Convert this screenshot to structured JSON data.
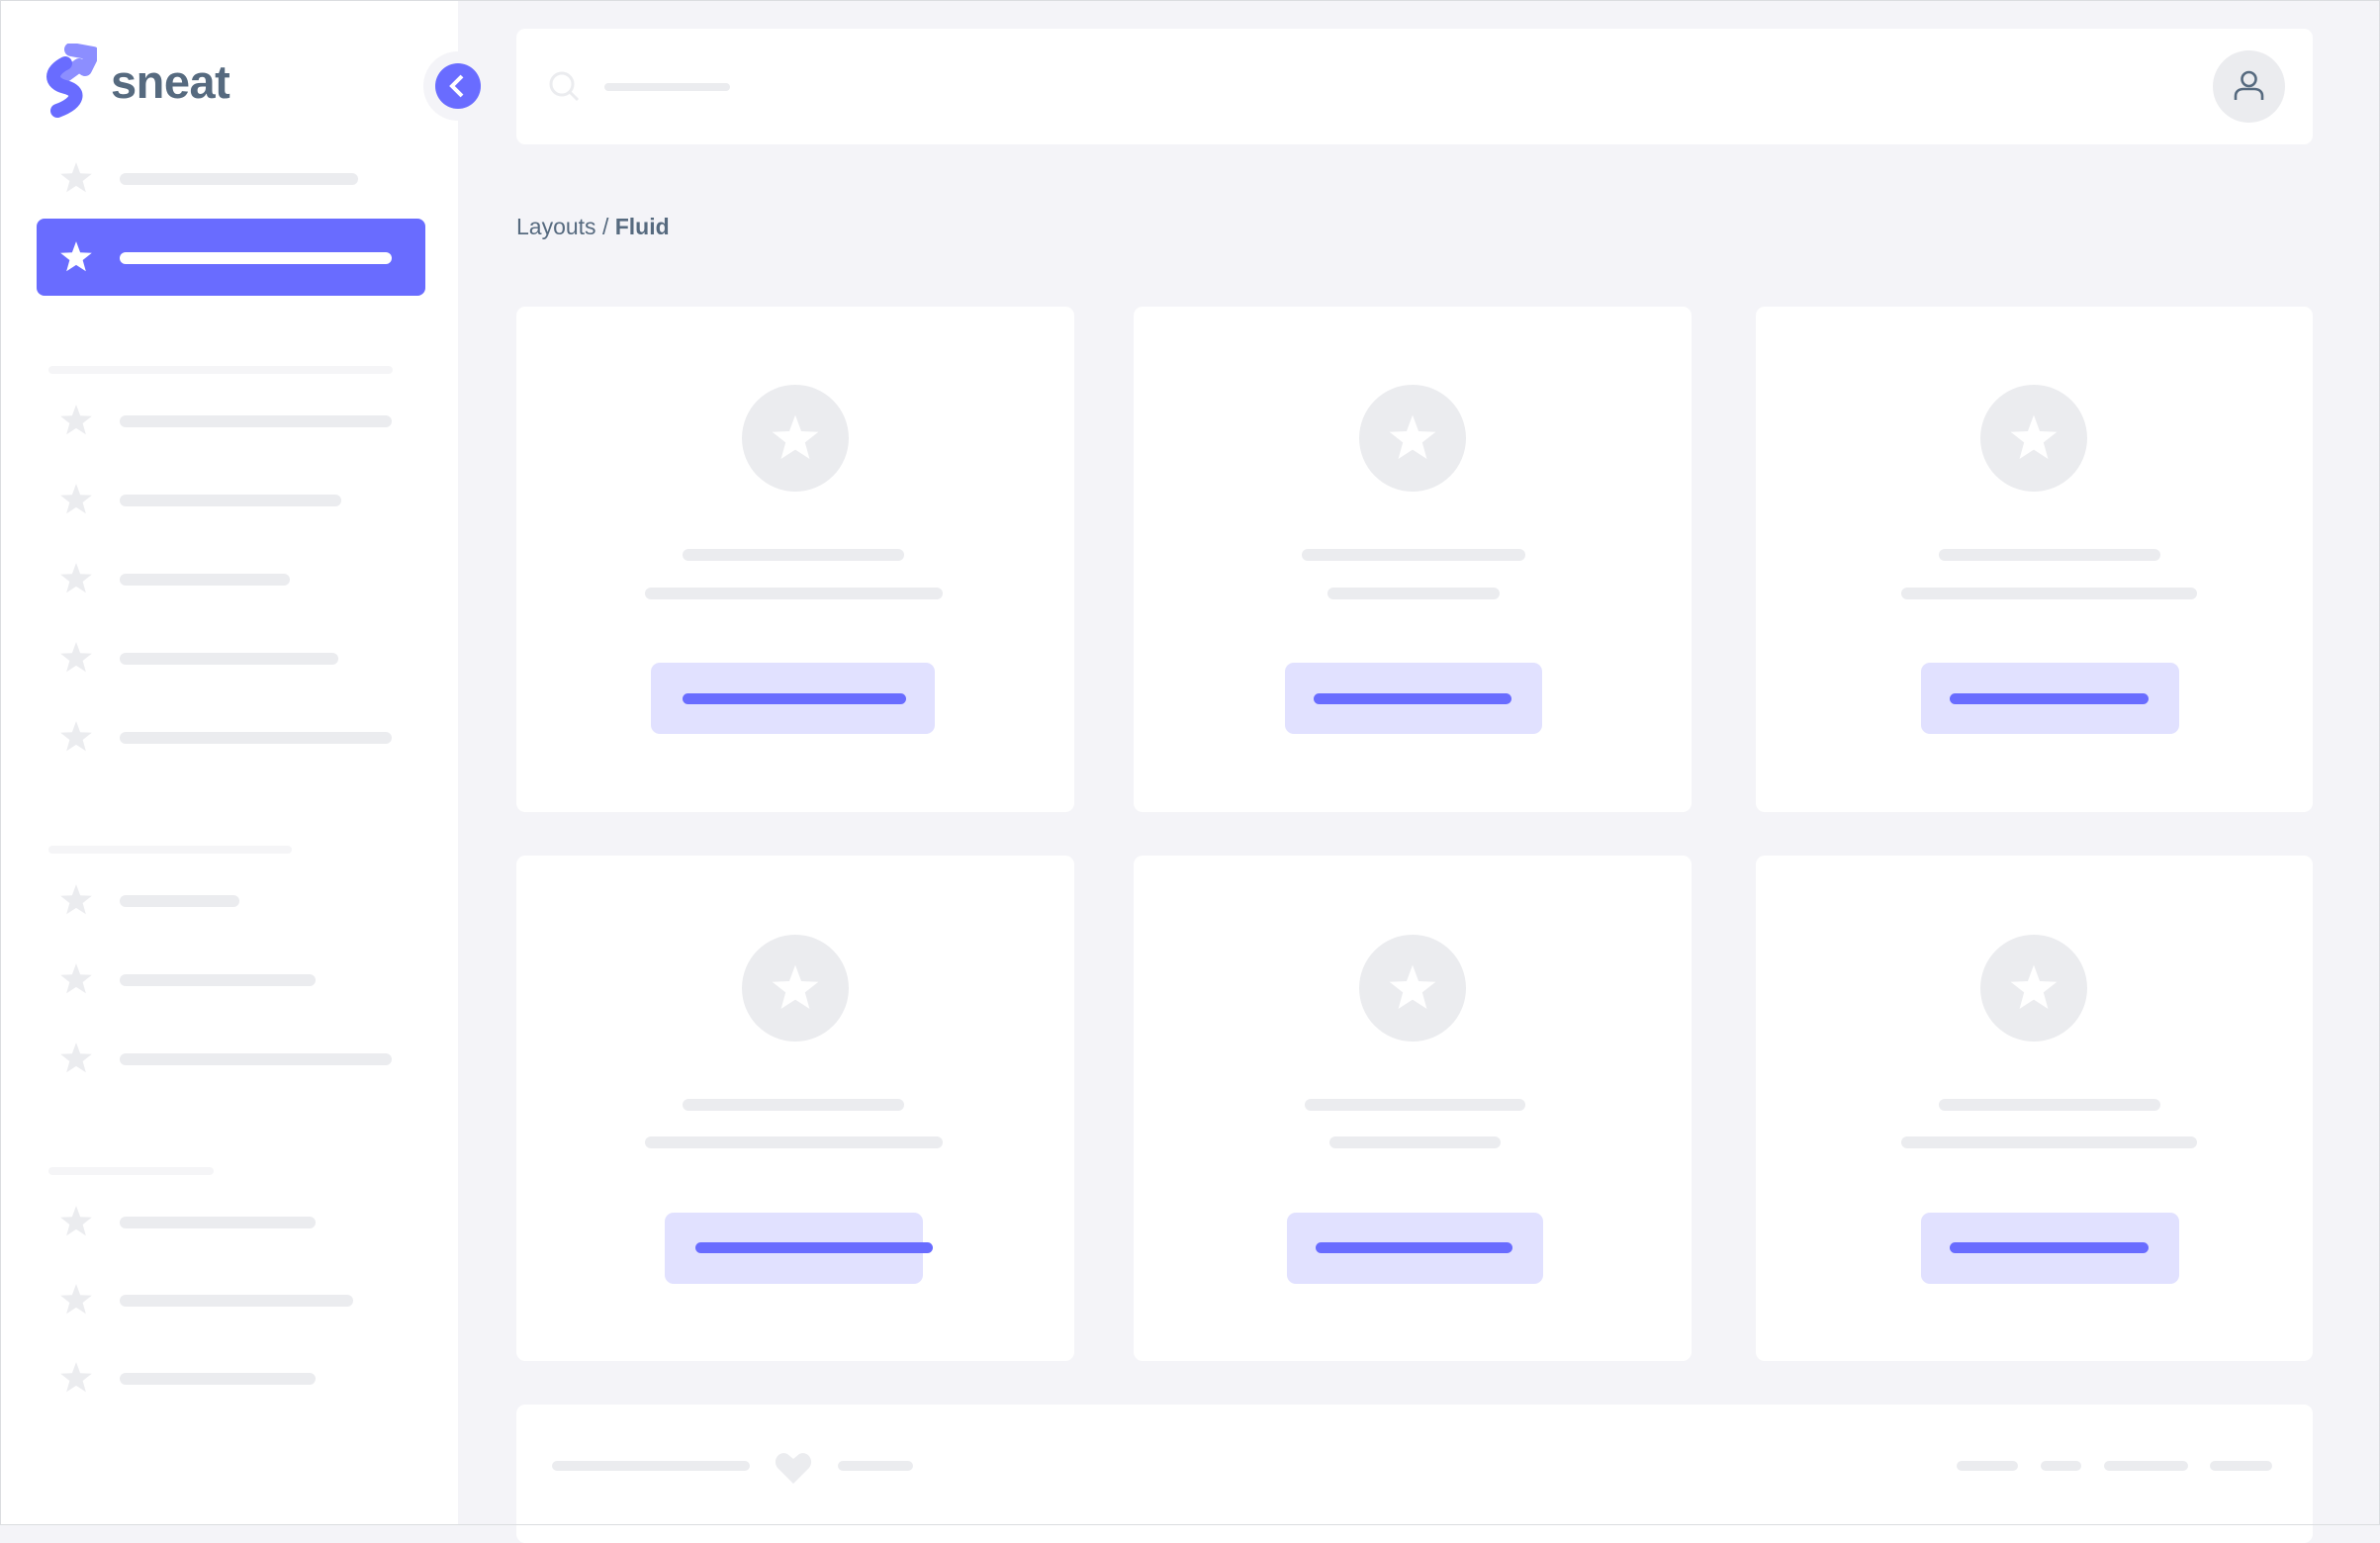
{
  "app": {
    "logo_text": "sneat",
    "brand_color": "#696cff"
  },
  "sidebar": {
    "toggle_icon": "chevron-left-icon",
    "item_icon": "star-icon",
    "active_index": 1
  },
  "navbar": {
    "search_icon": "search-icon",
    "avatar_icon": "user-icon"
  },
  "breadcrumb": {
    "parent": "Layouts",
    "separator": "/",
    "current": "Fluid"
  },
  "cards": {
    "count": 6,
    "icon": "star-icon"
  },
  "footer": {
    "icon": "heart-icon"
  }
}
